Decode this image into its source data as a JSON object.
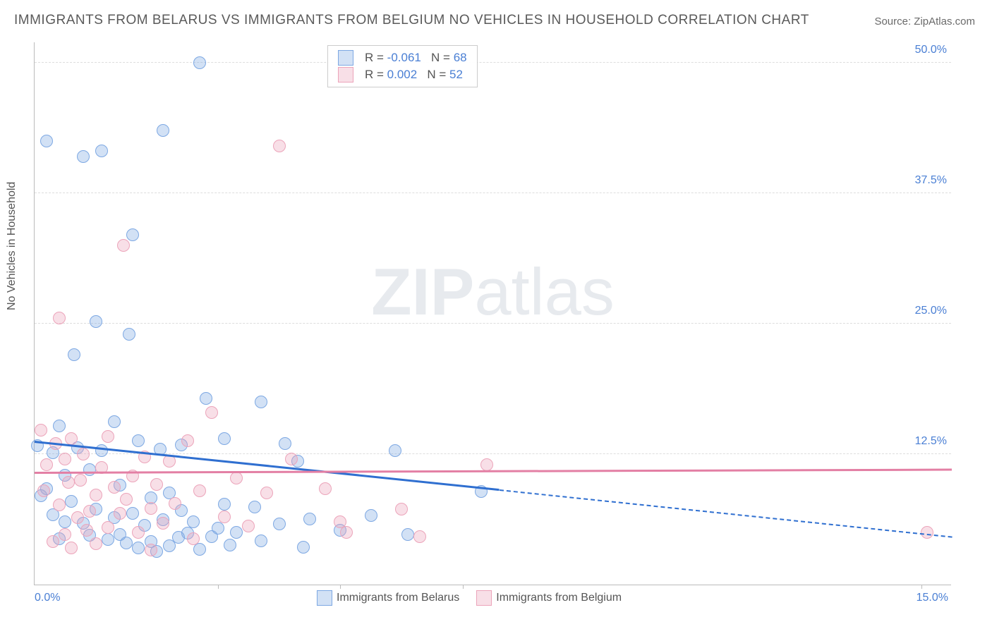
{
  "title": "IMMIGRANTS FROM BELARUS VS IMMIGRANTS FROM BELGIUM NO VEHICLES IN HOUSEHOLD CORRELATION CHART",
  "source": "Source: ZipAtlas.com",
  "ylabel": "No Vehicles in Household",
  "watermark_zip": "ZIP",
  "watermark_atlas": "atlas",
  "chart": {
    "type": "scatter",
    "xlim": [
      0,
      15
    ],
    "ylim": [
      0,
      52
    ],
    "x_ticks": [
      {
        "v": 0,
        "label": "0.0%"
      },
      {
        "v": 15,
        "label": "15.0%"
      }
    ],
    "x_minor_ticks": [
      3,
      5,
      7,
      14.5
    ],
    "y_ticks": [
      {
        "v": 12.5,
        "label": "12.5%"
      },
      {
        "v": 25.0,
        "label": "25.0%"
      },
      {
        "v": 37.5,
        "label": "37.5%"
      },
      {
        "v": 50.0,
        "label": "50.0%"
      }
    ],
    "background_color": "#ffffff",
    "grid_color": "#dddddd",
    "axis_color": "#bbbbbb",
    "tick_label_color": "#4a7fd4",
    "marker_radius": 9,
    "series": [
      {
        "name": "Immigrants from Belarus",
        "fill": "rgba(125,168,227,0.35)",
        "stroke": "#7da8e3",
        "line_color": "#2f6fd0",
        "R": "-0.061",
        "N": "68",
        "trend": {
          "x1": 0,
          "y1": 13.6,
          "x2_solid": 7.6,
          "y2_solid": 9.0,
          "x2": 15,
          "y2": 4.5
        },
        "points": [
          [
            0.05,
            13.3
          ],
          [
            0.2,
            42.5
          ],
          [
            0.3,
            12.6
          ],
          [
            0.4,
            15.2
          ],
          [
            0.2,
            9.2
          ],
          [
            0.6,
            8.0
          ],
          [
            0.5,
            10.5
          ],
          [
            0.65,
            22.0
          ],
          [
            0.8,
            5.9
          ],
          [
            0.8,
            41.0
          ],
          [
            0.9,
            4.7
          ],
          [
            1.0,
            7.2
          ],
          [
            1.0,
            25.2
          ],
          [
            1.1,
            12.8
          ],
          [
            1.1,
            41.5
          ],
          [
            1.2,
            4.3
          ],
          [
            1.3,
            15.6
          ],
          [
            1.3,
            6.4
          ],
          [
            1.4,
            9.5
          ],
          [
            1.5,
            4.0
          ],
          [
            1.55,
            24.0
          ],
          [
            1.6,
            33.5
          ],
          [
            1.6,
            6.8
          ],
          [
            1.7,
            3.5
          ],
          [
            1.7,
            13.8
          ],
          [
            1.8,
            5.7
          ],
          [
            1.9,
            4.1
          ],
          [
            1.9,
            8.3
          ],
          [
            2.0,
            3.2
          ],
          [
            2.05,
            13.0
          ],
          [
            2.1,
            6.2
          ],
          [
            2.1,
            43.5
          ],
          [
            2.2,
            3.7
          ],
          [
            2.2,
            8.8
          ],
          [
            2.35,
            4.5
          ],
          [
            2.4,
            13.4
          ],
          [
            2.4,
            7.1
          ],
          [
            2.5,
            4.9
          ],
          [
            2.6,
            6.0
          ],
          [
            2.7,
            3.4
          ],
          [
            2.7,
            50.0
          ],
          [
            2.8,
            17.8
          ],
          [
            2.9,
            4.6
          ],
          [
            3.0,
            5.4
          ],
          [
            3.1,
            7.7
          ],
          [
            3.1,
            14.0
          ],
          [
            3.2,
            3.8
          ],
          [
            3.3,
            5.0
          ],
          [
            3.6,
            7.4
          ],
          [
            3.7,
            4.2
          ],
          [
            3.7,
            17.5
          ],
          [
            4.0,
            5.8
          ],
          [
            4.1,
            13.5
          ],
          [
            4.3,
            11.8
          ],
          [
            4.4,
            3.6
          ],
          [
            4.5,
            6.3
          ],
          [
            5.0,
            5.2
          ],
          [
            5.5,
            6.6
          ],
          [
            5.9,
            12.8
          ],
          [
            6.1,
            4.8
          ],
          [
            7.3,
            8.9
          ],
          [
            0.1,
            8.5
          ],
          [
            0.3,
            6.7
          ],
          [
            0.4,
            4.4
          ],
          [
            0.7,
            13.1
          ],
          [
            0.9,
            11.0
          ],
          [
            1.4,
            4.8
          ],
          [
            0.5,
            6.0
          ]
        ]
      },
      {
        "name": "Immigrants from Belgium",
        "fill": "rgba(236,164,186,0.35)",
        "stroke": "#eca4ba",
        "line_color": "#e37fa4",
        "R": "0.002",
        "N": "52",
        "trend": {
          "x1": 0,
          "y1": 10.6,
          "x2_solid": 15,
          "y2_solid": 10.9,
          "x2": 15,
          "y2": 10.9
        },
        "points": [
          [
            0.1,
            14.8
          ],
          [
            0.15,
            9.0
          ],
          [
            0.2,
            11.5
          ],
          [
            0.35,
            13.5
          ],
          [
            0.4,
            7.6
          ],
          [
            0.4,
            25.5
          ],
          [
            0.5,
            12.0
          ],
          [
            0.5,
            4.8
          ],
          [
            0.55,
            9.8
          ],
          [
            0.6,
            14.0
          ],
          [
            0.7,
            6.4
          ],
          [
            0.75,
            10.0
          ],
          [
            0.8,
            12.5
          ],
          [
            0.85,
            5.2
          ],
          [
            0.9,
            7.0
          ],
          [
            1.0,
            3.9
          ],
          [
            1.0,
            8.6
          ],
          [
            1.1,
            11.2
          ],
          [
            1.2,
            5.5
          ],
          [
            1.2,
            14.2
          ],
          [
            1.3,
            9.3
          ],
          [
            1.4,
            6.8
          ],
          [
            1.45,
            32.5
          ],
          [
            1.5,
            8.2
          ],
          [
            1.6,
            10.4
          ],
          [
            1.7,
            5.0
          ],
          [
            1.8,
            12.2
          ],
          [
            1.9,
            7.3
          ],
          [
            1.9,
            3.3
          ],
          [
            2.0,
            9.6
          ],
          [
            2.1,
            5.9
          ],
          [
            2.2,
            11.8
          ],
          [
            2.3,
            7.8
          ],
          [
            2.5,
            13.8
          ],
          [
            2.6,
            4.4
          ],
          [
            2.7,
            9.0
          ],
          [
            2.9,
            16.5
          ],
          [
            3.1,
            6.5
          ],
          [
            3.3,
            10.2
          ],
          [
            3.5,
            5.6
          ],
          [
            3.8,
            8.8
          ],
          [
            4.0,
            42.0
          ],
          [
            4.2,
            12.0
          ],
          [
            4.75,
            9.2
          ],
          [
            5.0,
            6.0
          ],
          [
            5.1,
            5.0
          ],
          [
            6.0,
            7.2
          ],
          [
            6.3,
            4.6
          ],
          [
            7.4,
            11.5
          ],
          [
            14.6,
            5.0
          ],
          [
            0.3,
            4.1
          ],
          [
            0.6,
            3.5
          ]
        ]
      }
    ],
    "legend_bottom_left": 400
  },
  "stat_labels": {
    "r": "R =",
    "n": "N ="
  }
}
